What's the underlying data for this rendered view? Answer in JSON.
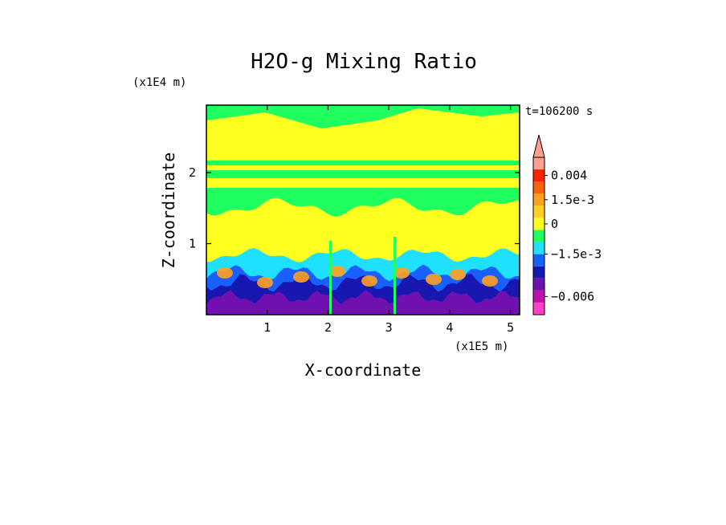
{
  "chart_data": {
    "type": "heatmap",
    "title": "H2O-g Mixing Ratio",
    "xlabel": "X-coordinate",
    "ylabel": "Z-coordinate",
    "x_unit": "(x1E5 m)",
    "y_unit": "(x1E4 m)",
    "time_label": "t=106200 s",
    "xlim": [
      0,
      5.15
    ],
    "ylim": [
      0,
      2.95
    ],
    "x_ticks": [
      1,
      2,
      3,
      4,
      5
    ],
    "y_ticks": [
      1,
      2
    ],
    "x_tick_labels": [
      "1",
      "2",
      "3",
      "4",
      "5"
    ],
    "y_tick_labels": [
      "1",
      "2"
    ],
    "colorbar": {
      "levels": [
        {
          "color": "#ff40c8"
        },
        {
          "color": "#c010b0"
        },
        {
          "color": "#7010b0"
        },
        {
          "color": "#1818b0"
        },
        {
          "color": "#1a60ff"
        },
        {
          "color": "#20e0ff"
        },
        {
          "color": "#20ff60"
        },
        {
          "color": "#ffff20"
        },
        {
          "color": "#ffd020"
        },
        {
          "color": "#ffa020"
        },
        {
          "color": "#ff6010"
        },
        {
          "color": "#ff2000"
        },
        {
          "color": "#ffa090"
        }
      ],
      "labels": [
        {
          "text": "0.004",
          "level": 11.5
        },
        {
          "text": "1.5e-3",
          "level": 9.5
        },
        {
          "text": "0",
          "level": 7.5
        },
        {
          "text": "−1.5e-3",
          "level": 5.0
        },
        {
          "text": "−0.006",
          "level": 1.5
        }
      ]
    },
    "bands": [
      {
        "name": "top",
        "color": "#20ff60"
      },
      {
        "name": "upper-yellow",
        "color": "#ffff20"
      },
      {
        "name": "mid-yellow",
        "color": "#ffff20"
      },
      {
        "name": "cyan-layer",
        "color": "#20e0ff"
      },
      {
        "name": "blue-layer",
        "color": "#1a60ff"
      },
      {
        "name": "navy-layer",
        "color": "#1818b0"
      },
      {
        "name": "purple-layer",
        "color": "#7010b0"
      },
      {
        "name": "orange-plumes",
        "color": "#ffa020"
      }
    ]
  }
}
